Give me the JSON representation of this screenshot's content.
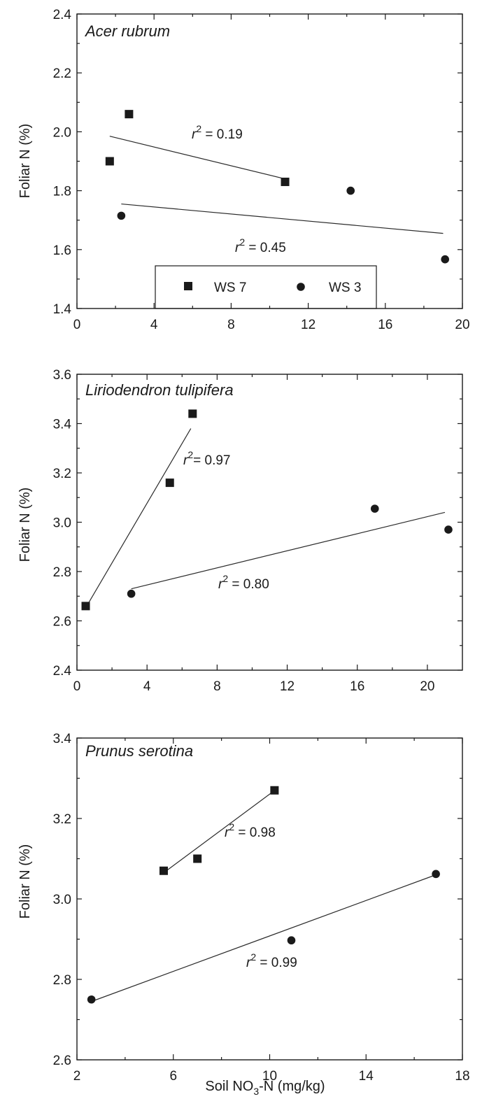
{
  "chart_data": [
    {
      "type": "scatter",
      "title": "Acer rubrum",
      "ylabel": "Foliar N (%)",
      "xlabel": "",
      "xlim": [
        0,
        20
      ],
      "ylim": [
        1.4,
        2.4
      ],
      "xticks": [
        "0",
        "4",
        "8",
        "12",
        "16",
        "20"
      ],
      "yticks": [
        "1.4",
        "1.6",
        "1.8",
        "2.0",
        "2.2",
        "2.4"
      ],
      "legend": {
        "position": "bottom-center",
        "entries": [
          "WS 7",
          "WS 3"
        ]
      },
      "series": [
        {
          "name": "WS 7",
          "marker": "square",
          "points": [
            [
              1.7,
              1.9
            ],
            [
              2.7,
              2.06
            ],
            [
              10.8,
              1.83
            ]
          ],
          "fit": [
            [
              1.7,
              1.985
            ],
            [
              10.8,
              1.84
            ]
          ],
          "r2_label": "r",
          "r2_value": "2",
          "r2_text": " = 0.19"
        },
        {
          "name": "WS 3",
          "marker": "circle",
          "points": [
            [
              2.3,
              1.715
            ],
            [
              14.2,
              1.8
            ],
            [
              19.1,
              1.567
            ]
          ],
          "fit": [
            [
              2.3,
              1.755
            ],
            [
              19.0,
              1.655
            ]
          ],
          "r2_label": "r",
          "r2_value": "2",
          "r2_text": " = 0.45"
        }
      ]
    },
    {
      "type": "scatter",
      "title": "Liriodendron tulipifera",
      "ylabel": "Foliar N (%)",
      "xlabel": "",
      "xlim": [
        0,
        22
      ],
      "ylim": [
        2.4,
        3.6
      ],
      "xticks": [
        "0",
        "4",
        "8",
        "12",
        "16",
        "20"
      ],
      "yticks": [
        "2.4",
        "2.6",
        "2.8",
        "3.0",
        "3.2",
        "3.4",
        "3.6"
      ],
      "series": [
        {
          "name": "WS 7",
          "marker": "square",
          "points": [
            [
              0.5,
              2.66
            ],
            [
              5.3,
              3.16
            ],
            [
              6.6,
              3.44
            ]
          ],
          "fit": [
            [
              0.6,
              2.665
            ],
            [
              6.5,
              3.38
            ]
          ],
          "r2_label": "r",
          "r2_value": "2",
          "r2_text": "= 0.97"
        },
        {
          "name": "WS 3",
          "marker": "circle",
          "points": [
            [
              3.1,
              2.71
            ],
            [
              17.0,
              3.055
            ],
            [
              21.2,
              2.97
            ]
          ],
          "fit": [
            [
              3.1,
              2.73
            ],
            [
              21.0,
              3.04
            ]
          ],
          "r2_label": "r",
          "r2_value": "2",
          "r2_text": " = 0.80"
        }
      ]
    },
    {
      "type": "scatter",
      "title": "Prunus serotina",
      "ylabel": "Foliar N (%)",
      "xlabel_pre": "Soil NO",
      "xlabel_sub": "3",
      "xlabel_post": "-N (mg/kg)",
      "xlim": [
        2,
        18
      ],
      "ylim": [
        2.6,
        3.4
      ],
      "xticks": [
        "2",
        "6",
        "10",
        "14",
        "18"
      ],
      "yticks": [
        "2.6",
        "2.8",
        "3.0",
        "3.2",
        "3.4"
      ],
      "series": [
        {
          "name": "WS 7",
          "marker": "square",
          "points": [
            [
              5.6,
              3.07
            ],
            [
              7.0,
              3.1
            ],
            [
              10.2,
              3.27
            ]
          ],
          "fit": [
            [
              5.6,
              3.065
            ],
            [
              10.1,
              3.265
            ]
          ],
          "r2_label": "r",
          "r2_value": "2",
          "r2_text": " = 0.98"
        },
        {
          "name": "WS 3",
          "marker": "circle",
          "points": [
            [
              2.6,
              2.75
            ],
            [
              10.9,
              2.897
            ],
            [
              16.9,
              3.062
            ]
          ],
          "fit": [
            [
              2.6,
              2.745
            ],
            [
              16.9,
              3.06
            ]
          ],
          "r2_label": "r",
          "r2_value": "2",
          "r2_text": " = 0.99"
        }
      ]
    }
  ]
}
